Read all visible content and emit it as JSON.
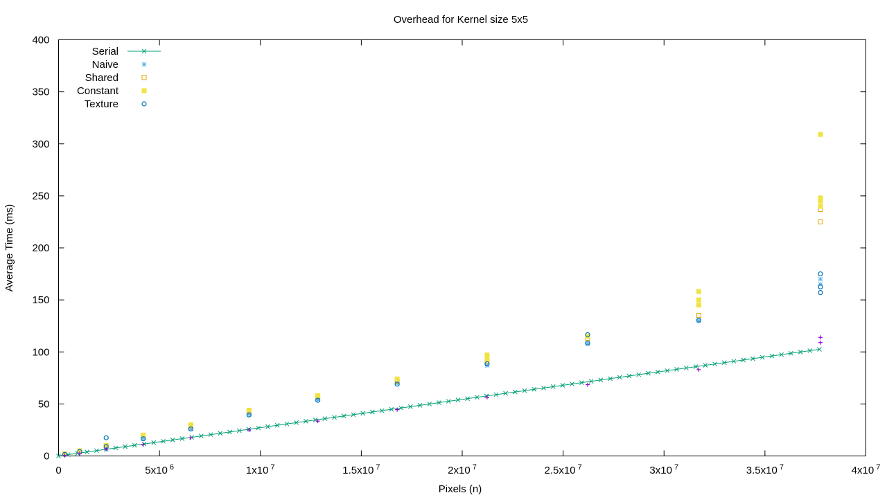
{
  "chart_data": {
    "type": "scatter",
    "title": "Overhead for Kernel size 5x5",
    "xlabel": "Pixels (n)",
    "ylabel": "Average Time (ms)",
    "xlim": [
      0,
      40000000
    ],
    "ylim": [
      0,
      400
    ],
    "x_ticks": [
      {
        "value": 0,
        "mant": "0",
        "exp": ""
      },
      {
        "value": 5000000,
        "mant": "5x10",
        "exp": "6"
      },
      {
        "value": 10000000,
        "mant": "1x10",
        "exp": "7"
      },
      {
        "value": 15000000,
        "mant": "1.5x10",
        "exp": "7"
      },
      {
        "value": 20000000,
        "mant": "2x10",
        "exp": "7"
      },
      {
        "value": 25000000,
        "mant": "2.5x10",
        "exp": "7"
      },
      {
        "value": 30000000,
        "mant": "3x10",
        "exp": "7"
      },
      {
        "value": 35000000,
        "mant": "3.5x10",
        "exp": "7"
      },
      {
        "value": 40000000,
        "mant": "4x10",
        "exp": "7"
      }
    ],
    "y_ticks": [
      0,
      50,
      100,
      150,
      200,
      250,
      300,
      350,
      400
    ],
    "grid": false,
    "legend_position": "top-left",
    "series": [
      {
        "name": "Serial",
        "marker": "x",
        "line": true,
        "color": "#009e73",
        "x": [
          0,
          37700000
        ],
        "y": [
          0,
          102.5
        ]
      },
      {
        "name": "Naive",
        "marker": "star",
        "color": "#56b4e9",
        "x": [
          307200,
          1048576,
          2359296,
          4194304,
          6553600,
          9437184,
          12845056,
          16777216,
          21233664,
          26214400,
          31719424,
          37748736,
          37748736
        ],
        "y": [
          1.5,
          4,
          9,
          17,
          26,
          40,
          54,
          70,
          87,
          108,
          130,
          165,
          170
        ]
      },
      {
        "name": "Shared",
        "marker": "square-open",
        "color": "#e69f00",
        "x": [
          307200,
          1048576,
          2359296,
          4194304,
          6553600,
          9437184,
          12845056,
          16777216,
          21233664,
          26214400,
          31719424,
          37748736,
          37748736
        ],
        "y": [
          1.8,
          4.5,
          10,
          20,
          29,
          43,
          57,
          72,
          91,
          113,
          135,
          225,
          237
        ]
      },
      {
        "name": "Constant",
        "marker": "square-filled",
        "color": "#f0e442",
        "x": [
          307200,
          1048576,
          2359296,
          4194304,
          6553600,
          9437184,
          12845056,
          16777216,
          21233664,
          21233664,
          26214400,
          31719424,
          31719424,
          31719424,
          37748736,
          37748736,
          37748736,
          37748736
        ],
        "y": [
          2,
          5,
          10,
          20,
          30,
          44,
          58,
          74,
          93,
          97,
          115,
          145,
          150,
          158,
          240,
          245,
          248,
          309
        ]
      },
      {
        "name": "Texture",
        "marker": "circle-open",
        "color": "#0072b2",
        "x": [
          307200,
          1048576,
          2359296,
          2359296,
          4194304,
          6553600,
          9437184,
          12845056,
          16777216,
          21233664,
          26214400,
          26214400,
          31719424,
          37748736,
          37748736,
          37748736
        ],
        "y": [
          1.5,
          4.2,
          9,
          17.5,
          16.5,
          26,
          39.5,
          53.5,
          69,
          88.5,
          108.5,
          116.5,
          130.5,
          157,
          162.5,
          175
        ]
      },
      {
        "name": "",
        "marker": "plus",
        "color": "#9400d3",
        "x": [
          307200,
          1048576,
          2359296,
          4194304,
          6553600,
          9437184,
          12845056,
          16777216,
          21233664,
          26214400,
          31719424,
          37748736,
          37748736
        ],
        "y": [
          0.5,
          2.5,
          6.5,
          11,
          17.5,
          25,
          33.5,
          44.5,
          56.5,
          68.5,
          83,
          109,
          114
        ]
      }
    ]
  }
}
